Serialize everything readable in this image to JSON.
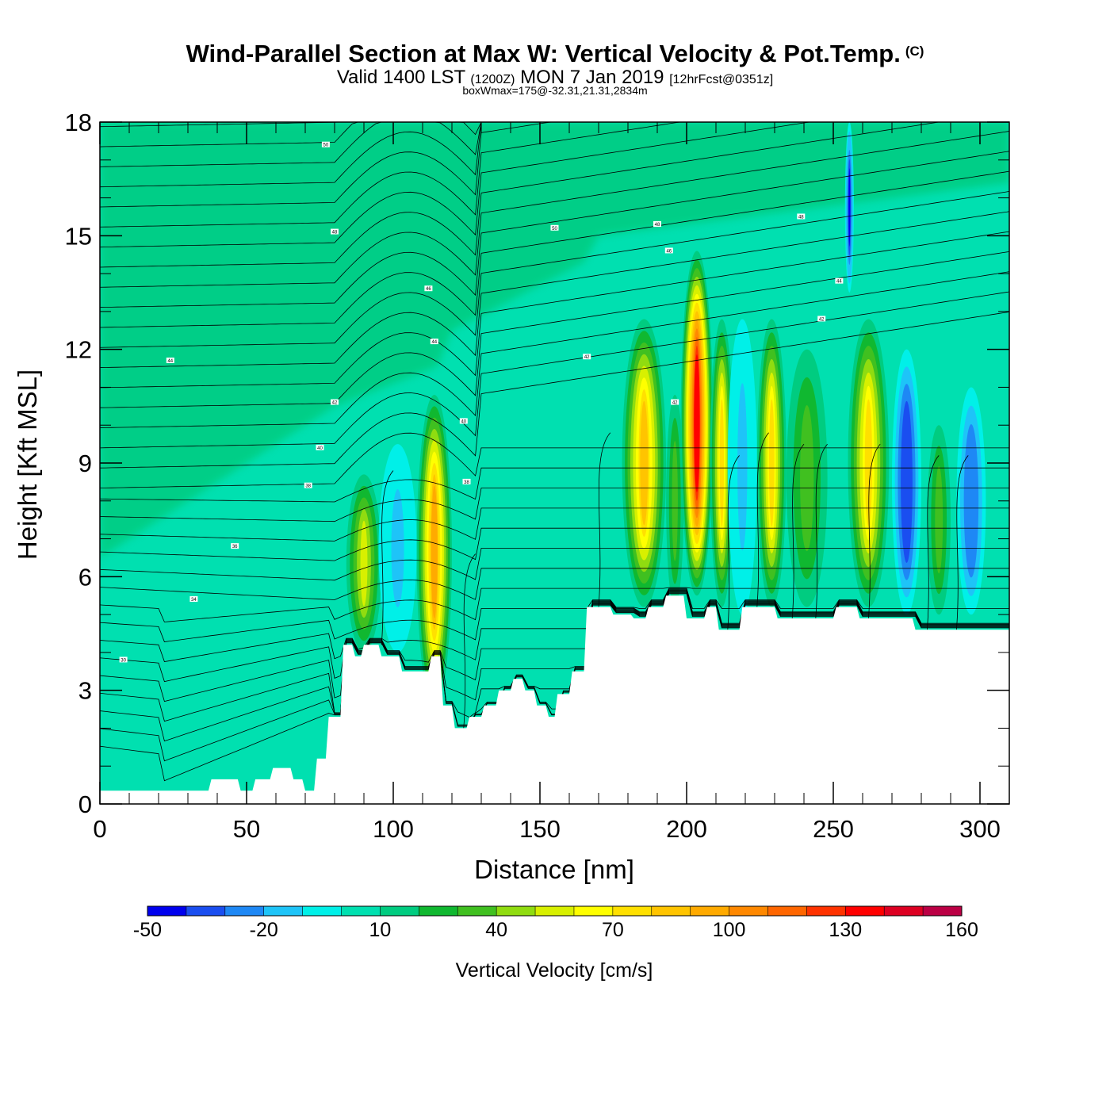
{
  "header": {
    "title": "Wind-Parallel Section at Max W: Vertical Velocity & Pot.Temp.",
    "copyright": "(C)",
    "subtitle_main": "Valid 1400 LST",
    "subtitle_utc": "(1200Z)",
    "subtitle_date": "MON 7 Jan 2019",
    "subtitle_fcst": "[12hrFcst@0351z]",
    "box_info": "boxWmax=175@-32.31,21.31,2834m"
  },
  "chart_data": {
    "type": "heatmap",
    "title": "Wind-Parallel Section at Max W: Vertical Velocity & Pot.Temp.",
    "xlabel": "Distance [nm]",
    "ylabel": "Height [Kft MSL]",
    "xlim": [
      0,
      310
    ],
    "ylim": [
      0,
      18
    ],
    "x_ticks": [
      0,
      50,
      100,
      150,
      200,
      250,
      300
    ],
    "y_ticks": [
      0,
      3,
      6,
      9,
      12,
      15,
      18
    ],
    "colorbar": {
      "label": "Vertical Velocity [cm/s]",
      "levels": [
        -50,
        -40,
        -30,
        -20,
        -10,
        0,
        10,
        20,
        30,
        40,
        50,
        60,
        70,
        80,
        90,
        100,
        110,
        120,
        130,
        140,
        150,
        160
      ],
      "tick_values": [
        "-50",
        "-20",
        "10",
        "40",
        "70",
        "100",
        "130",
        "160"
      ],
      "colors": [
        "#0000ee",
        "#1a4ef0",
        "#1e88f5",
        "#1ec4f8",
        "#00f0e8",
        "#00e0b0",
        "#00cc80",
        "#10b830",
        "#40c020",
        "#90dc10",
        "#d8f000",
        "#ffff00",
        "#ffe000",
        "#ffc400",
        "#ffaa00",
        "#ff8800",
        "#ff6600",
        "#ff3300",
        "#ff0000",
        "#dd0022",
        "#bb0044"
      ]
    },
    "background_w": 7,
    "upper_background_w": 15,
    "cells": [
      {
        "x0": 84,
        "x1": 96,
        "z_bot": 4.0,
        "z_top": 8.7,
        "w": 55
      },
      {
        "x0": 95,
        "x1": 108,
        "z_bot": 4.0,
        "z_top": 9.5,
        "w": -18
      },
      {
        "x0": 108,
        "x1": 120,
        "z_bot": 2.5,
        "z_top": 10.8,
        "w": 90
      },
      {
        "x0": 178,
        "x1": 193,
        "z_bot": 5.2,
        "z_top": 12.8,
        "w": 80
      },
      {
        "x0": 193,
        "x1": 199,
        "z_bot": 5.2,
        "z_top": 10.8,
        "w": 35
      },
      {
        "x0": 198,
        "x1": 209,
        "z_bot": 5.5,
        "z_top": 14.6,
        "w": 135
      },
      {
        "x0": 208,
        "x1": 216,
        "z_bot": 5.2,
        "z_top": 12.8,
        "w": 75
      },
      {
        "x0": 214,
        "x1": 224,
        "z_bot": 5.0,
        "z_top": 12.8,
        "w": -15
      },
      {
        "x0": 224,
        "x1": 234,
        "z_bot": 5.2,
        "z_top": 12.8,
        "w": 75
      },
      {
        "x0": 234,
        "x1": 248,
        "z_bot": 5.2,
        "z_top": 12.0,
        "w": 30
      },
      {
        "x0": 254,
        "x1": 257,
        "z_bot": 13.5,
        "z_top": 18.0,
        "w": -45
      },
      {
        "x0": 255,
        "x1": 269,
        "z_bot": 5.2,
        "z_top": 12.8,
        "w": 75
      },
      {
        "x0": 270,
        "x1": 280,
        "z_bot": 5.0,
        "z_top": 12.0,
        "w": -40
      },
      {
        "x0": 282,
        "x1": 290,
        "z_bot": 5.0,
        "z_top": 10.0,
        "w": 30
      },
      {
        "x0": 292,
        "x1": 302,
        "z_bot": 5.0,
        "z_top": 11.0,
        "w": -30
      }
    ],
    "terrain": {
      "x": [
        0,
        37,
        38,
        47,
        48,
        52,
        53,
        58,
        59,
        65,
        66,
        69,
        70,
        73,
        74,
        77,
        78,
        82,
        83,
        86,
        87,
        89,
        90,
        95,
        96,
        102,
        103,
        112,
        113,
        116,
        117,
        120,
        121,
        125,
        126,
        130,
        131,
        135,
        136,
        140,
        141,
        144,
        145,
        148,
        149,
        152,
        153,
        155,
        156,
        160,
        161,
        165,
        166,
        174,
        175,
        181,
        182,
        186,
        187,
        192,
        193,
        199,
        200,
        206,
        207,
        210,
        211,
        218,
        219,
        230,
        231,
        250,
        251,
        258,
        259,
        277,
        278,
        283,
        284,
        310
      ],
      "z": [
        0.35,
        0.35,
        0.65,
        0.65,
        0.35,
        0.35,
        0.65,
        0.65,
        0.95,
        0.95,
        0.65,
        0.65,
        0.35,
        0.35,
        1.2,
        1.2,
        2.3,
        2.3,
        4.2,
        4.2,
        3.9,
        3.9,
        4.2,
        4.2,
        3.9,
        3.9,
        3.5,
        3.5,
        3.9,
        3.9,
        2.6,
        2.6,
        2.0,
        2.0,
        2.3,
        2.3,
        2.6,
        2.6,
        3.0,
        3.0,
        3.3,
        3.3,
        3.0,
        3.0,
        2.6,
        2.6,
        2.3,
        2.3,
        2.9,
        2.9,
        3.5,
        3.5,
        5.2,
        5.2,
        5.0,
        5.0,
        4.9,
        4.9,
        5.2,
        5.2,
        5.5,
        5.5,
        4.9,
        4.9,
        5.2,
        5.2,
        4.6,
        4.6,
        5.2,
        5.2,
        4.9,
        4.9,
        5.2,
        5.2,
        4.9,
        4.9,
        4.6,
        4.6,
        4.6,
        4.6
      ]
    },
    "isentropes_note": "potential temperature contours",
    "contour_labels": [
      {
        "x": 8,
        "y": 3.8,
        "text": "30"
      },
      {
        "x": 32,
        "y": 5.4,
        "text": "34"
      },
      {
        "x": 46,
        "y": 6.8,
        "text": "36"
      },
      {
        "x": 71,
        "y": 8.4,
        "text": "38"
      },
      {
        "x": 75,
        "y": 9.4,
        "text": "40"
      },
      {
        "x": 80,
        "y": 10.6,
        "text": "42"
      },
      {
        "x": 24,
        "y": 11.7,
        "text": "44"
      },
      {
        "x": 80,
        "y": 15.1,
        "text": "48"
      },
      {
        "x": 77,
        "y": 17.4,
        "text": "50"
      },
      {
        "x": 112,
        "y": 13.6,
        "text": "46"
      },
      {
        "x": 114,
        "y": 12.2,
        "text": "44"
      },
      {
        "x": 124,
        "y": 10.1,
        "text": "40"
      },
      {
        "x": 125,
        "y": 8.5,
        "text": "38"
      },
      {
        "x": 155,
        "y": 15.2,
        "text": "50"
      },
      {
        "x": 166,
        "y": 11.8,
        "text": "42"
      },
      {
        "x": 190,
        "y": 15.3,
        "text": "48"
      },
      {
        "x": 194,
        "y": 14.6,
        "text": "46"
      },
      {
        "x": 196,
        "y": 10.6,
        "text": "42"
      },
      {
        "x": 239,
        "y": 15.5,
        "text": "48"
      },
      {
        "x": 246,
        "y": 12.8,
        "text": "42"
      },
      {
        "x": 252,
        "y": 13.8,
        "text": "44"
      }
    ]
  }
}
